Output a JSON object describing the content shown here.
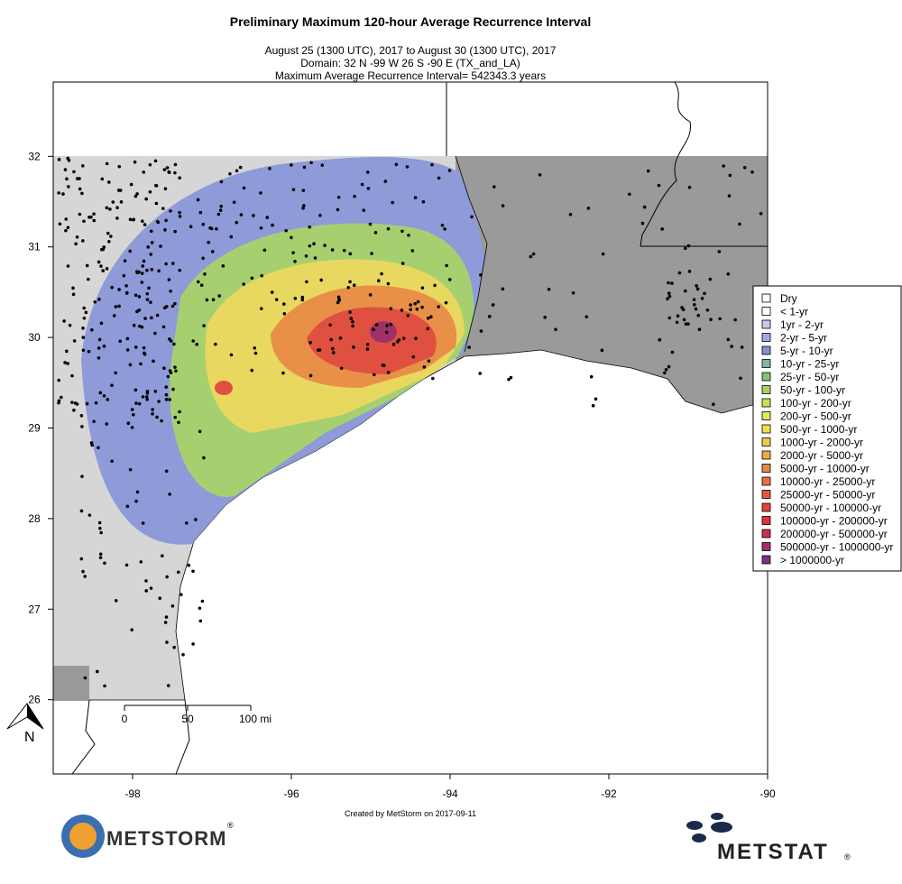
{
  "header": {
    "title": "Preliminary Maximum 120-hour Average Recurrence Interval",
    "lines": [
      "August 25 (1300 UTC), 2017 to August 30 (1300 UTC), 2017",
      "Domain: 32 N -99 W 26 S -90 E (TX_and_LA)",
      "Maximum Average Recurrence Interval= 542343.3 years"
    ]
  },
  "map": {
    "xlim": [
      -99,
      -90
    ],
    "ylim": [
      25.18,
      32.82
    ],
    "xticks": [
      -98,
      -96,
      -94,
      -92,
      -90
    ],
    "yticks": [
      26,
      27,
      28,
      29,
      30,
      31,
      32
    ]
  },
  "scale_bar": {
    "labels": [
      "0",
      "50",
      "100 mi"
    ]
  },
  "north_label": "N",
  "legend": {
    "entries": [
      {
        "label": "Dry",
        "color": "#ffffff"
      },
      {
        "label": "< 1-yr",
        "color": "#ffffff"
      },
      {
        "label": "1yr - 2-yr",
        "color": "#c8c8f0"
      },
      {
        "label": "2-yr - 5-yr",
        "color": "#a0a8e8"
      },
      {
        "label": "5-yr - 10-yr",
        "color": "#7f8fd0"
      },
      {
        "label": "10-yr - 25-yr",
        "color": "#88b0a8"
      },
      {
        "label": "25-yr - 50-yr",
        "color": "#88c070"
      },
      {
        "label": "50-yr - 100-yr",
        "color": "#a8d060"
      },
      {
        "label": "100-yr - 200-yr",
        "color": "#c8e050"
      },
      {
        "label": "200-yr - 500-yr",
        "color": "#e0e860"
      },
      {
        "label": "500-yr - 1000-yr",
        "color": "#f0e050"
      },
      {
        "label": "1000-yr - 2000-yr",
        "color": "#f0c850"
      },
      {
        "label": "2000-yr - 5000-yr",
        "color": "#f0a848"
      },
      {
        "label": "5000-yr - 10000-yr",
        "color": "#e88848"
      },
      {
        "label": "10000-yr - 25000-yr",
        "color": "#e87040"
      },
      {
        "label": "25000-yr - 50000-yr",
        "color": "#e85840"
      },
      {
        "label": "50000-yr - 100000-yr",
        "color": "#e84040"
      },
      {
        "label": "100000-yr - 200000-yr",
        "color": "#e03040"
      },
      {
        "label": "200000-yr - 500000-yr",
        "color": "#c83050"
      },
      {
        "label": "500000-yr - 1000000-yr",
        "color": "#a03068"
      },
      {
        "label": "> 1000000-yr",
        "color": "#803080"
      }
    ]
  },
  "credit": "Created by MetStorm on 2017-09-11",
  "logos": {
    "left": "METSTORM",
    "right": "METSTAT",
    "mark": "®"
  }
}
